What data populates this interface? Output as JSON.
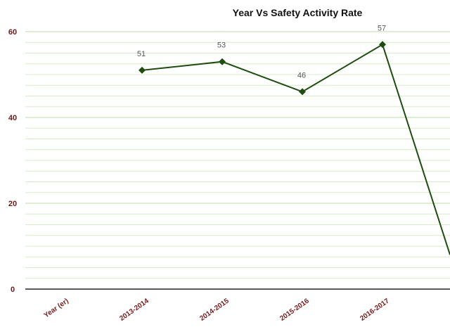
{
  "chart_data": {
    "type": "line",
    "title": "Year Vs Safety Activity Rate",
    "categories": [
      "Year (er)",
      "2013-2014",
      "2014-2015",
      "2015-2016",
      "2016-2017"
    ],
    "series": [
      {
        "values": [
          null,
          51,
          53,
          46,
          57
        ]
      }
    ],
    "data_labels": [
      "",
      "51",
      "53",
      "46",
      "57"
    ],
    "yticks": [
      0,
      20,
      40,
      60
    ],
    "ylim": [
      0,
      60
    ],
    "grid": true,
    "colors": {
      "line": "#1e4d0f",
      "marker": "#1e4d0f",
      "grid_minor": "#d8ecc8",
      "grid_major": "#bcd9a6",
      "axis": "#222222"
    },
    "trailing_segment_end": 8
  }
}
